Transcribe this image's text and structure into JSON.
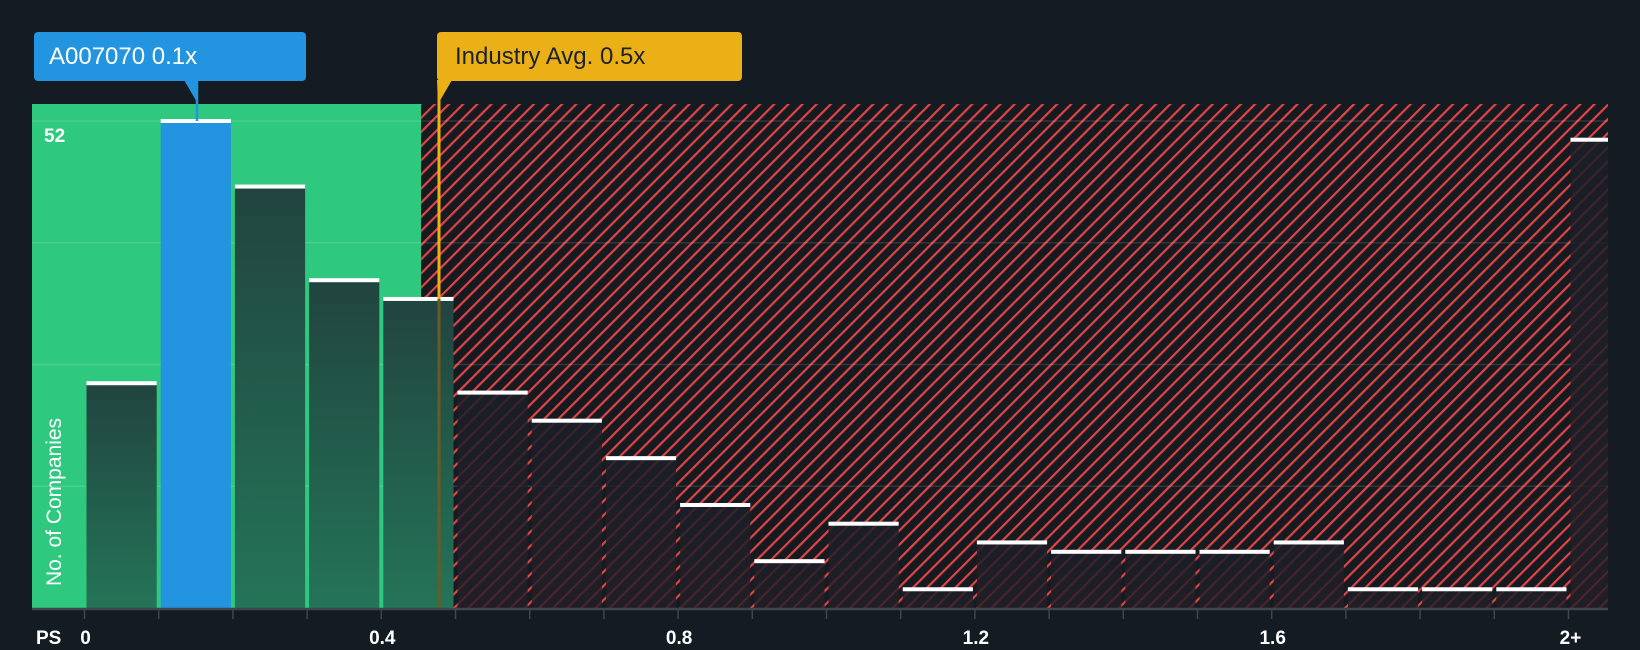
{
  "callouts": {
    "company": {
      "label": "A007070 0.1x",
      "value": 0.1,
      "color": "#2394e0"
    },
    "industry": {
      "label": "Industry Avg. 0.5x",
      "value": 0.5,
      "color": "#ecb017"
    }
  },
  "axis": {
    "y_title": "No. of Companies",
    "y_max_label": "52",
    "x_title": "PS",
    "x_tick_labels": [
      {
        "value": 0,
        "label": "0"
      },
      {
        "value": 0.4,
        "label": "0.4"
      },
      {
        "value": 0.8,
        "label": "0.8"
      },
      {
        "value": 1.2,
        "label": "1.2"
      },
      {
        "value": 1.6,
        "label": "1.6"
      },
      {
        "value": 2.0,
        "label": "2+"
      }
    ]
  },
  "colors": {
    "background": "#151b23",
    "fair_zone": "#2ec97f",
    "overvalued_hatch": "#e04444",
    "bar_dark_top": "#21443f",
    "bar_dark_bottom": "#247458",
    "highlight_bar": "#2394e0",
    "bar_cap": "#ffffff",
    "axis": "#3f4650"
  },
  "chart_data": {
    "type": "bar",
    "title": "",
    "xlabel": "PS",
    "ylabel": "No. of Companies",
    "ylim": [
      0,
      52
    ],
    "grid": true,
    "categories": [
      "0-0.1",
      "0.1-0.2",
      "0.2-0.3",
      "0.3-0.4",
      "0.4-0.5",
      "0.5-0.6",
      "0.6-0.7",
      "0.7-0.8",
      "0.8-0.9",
      "0.9-1.0",
      "1.0-1.1",
      "1.1-1.2",
      "1.2-1.3",
      "1.3-1.4",
      "1.4-1.5",
      "1.5-1.6",
      "1.6-1.7",
      "1.7-1.8",
      "1.8-1.9",
      "1.9-2.0",
      "2+"
    ],
    "values": [
      24,
      52,
      45,
      35,
      33,
      23,
      20,
      16,
      11,
      5,
      9,
      2,
      7,
      6,
      6,
      6,
      7,
      2,
      2,
      2,
      50
    ],
    "highlight_index": 1,
    "company_value": 0.1,
    "industry_average": 0.5,
    "fair_zone_upper": 0.48,
    "annotations": [
      "A007070 0.1x",
      "Industry Avg. 0.5x"
    ]
  }
}
